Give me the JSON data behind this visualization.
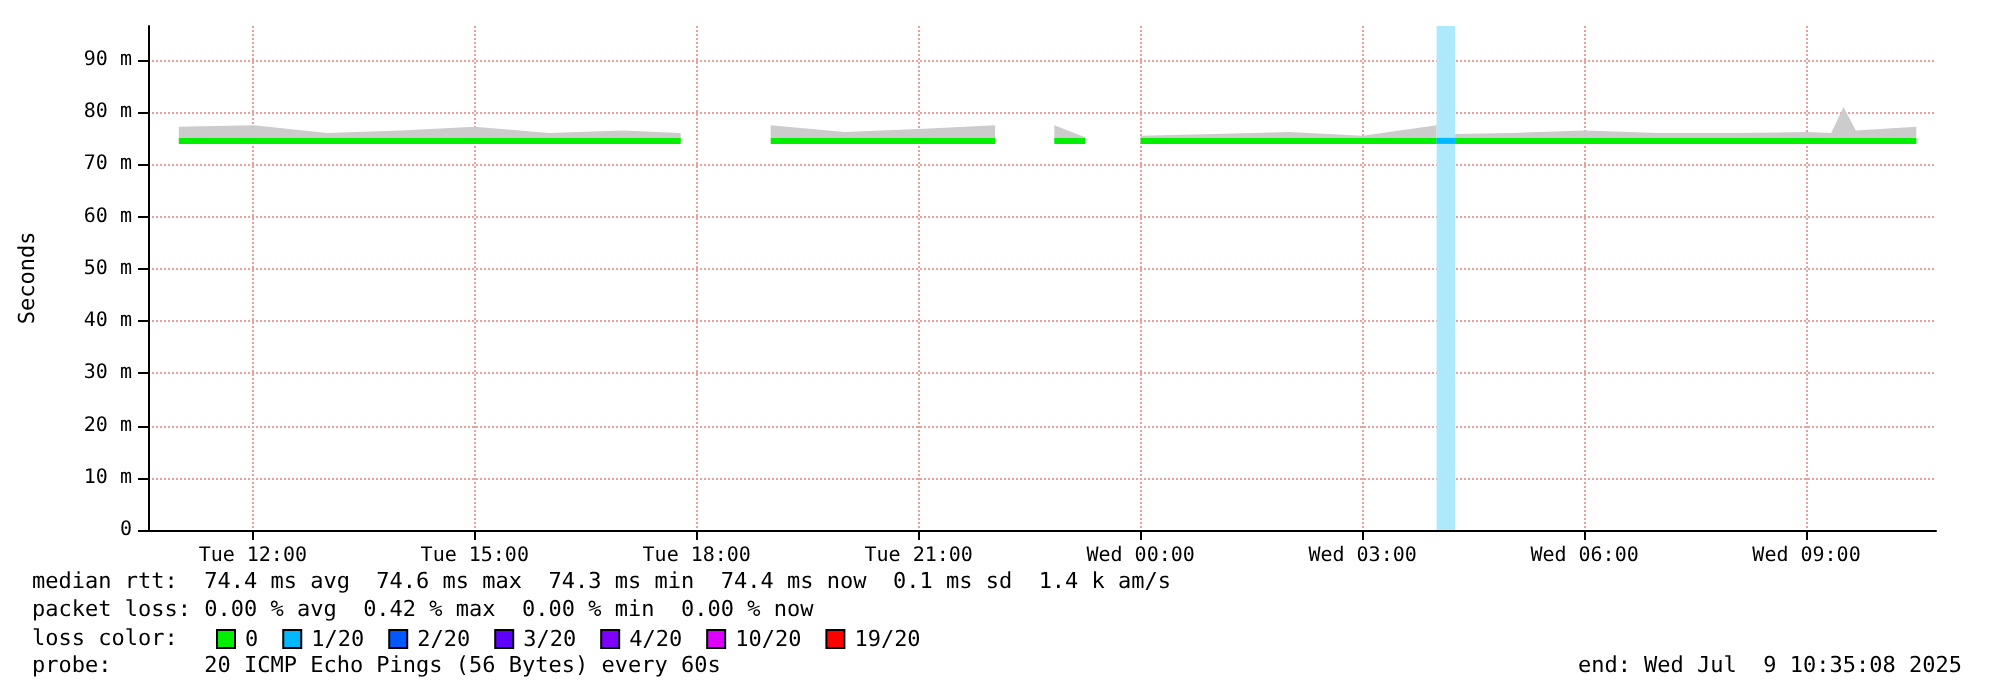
{
  "chart_data": {
    "type": "line",
    "ylabel": "Seconds",
    "legend_title": "loss color:",
    "legend": "bottom left",
    "grid": true,
    "marker": "none",
    "line_style": "solid",
    "xlim": [
      "2025-07-08T10:35",
      "2025-07-09T10:45"
    ],
    "xticks": [
      {
        "value": "2025-07-08T12:00",
        "label": "Tue 12:00"
      },
      {
        "value": "2025-07-08T15:00",
        "label": "Tue 15:00"
      },
      {
        "value": "2025-07-08T18:00",
        "label": "Tue 18:00"
      },
      {
        "value": "2025-07-08T21:00",
        "label": "Tue 21:00"
      },
      {
        "value": "2025-07-09T00:00",
        "label": "Wed 00:00"
      },
      {
        "value": "2025-07-09T03:00",
        "label": "Wed 03:00"
      },
      {
        "value": "2025-07-09T06:00",
        "label": "Wed 06:00"
      },
      {
        "value": "2025-07-09T09:00",
        "label": "Wed 09:00"
      }
    ],
    "ylim": [
      0,
      96.5
    ],
    "yticks": [
      0,
      {
        "value": 10,
        "label": "10 m"
      },
      {
        "value": 20,
        "label": "20 m"
      },
      {
        "value": 30,
        "label": "30 m"
      },
      {
        "value": 40,
        "label": "40 m"
      },
      {
        "value": 50,
        "label": "50 m"
      },
      {
        "value": 60,
        "label": "60 m"
      },
      {
        "value": 70,
        "label": "70 m"
      },
      {
        "value": 80,
        "label": "80 m"
      },
      {
        "value": 90,
        "label": "90 m"
      }
    ],
    "series": [
      {
        "name": "0",
        "color": "#00ee00",
        "x": [
          "2025-07-08T11:00",
          "2025-07-08T12:00",
          "2025-07-08T13:00",
          "2025-07-08T14:00",
          "2025-07-08T15:00",
          "2025-07-08T16:00",
          "2025-07-08T17:00",
          "2025-07-08T17:47",
          "2025-07-08T18:30",
          "2025-07-08T19:00",
          "2025-07-08T20:00",
          "2025-07-08T21:00",
          "2025-07-08T22:02",
          "2025-07-08T22:25",
          "2025-07-08T22:50",
          "2025-07-08T23:15",
          "2025-07-08T23:35",
          "2025-07-09T00:00",
          "2025-07-09T01:00",
          "2025-07-09T02:00",
          "2025-07-09T03:00",
          "2025-07-09T04:00",
          "2025-07-09T04:07",
          "2025-07-09T04:15",
          "2025-07-09T05:00",
          "2025-07-09T06:00",
          "2025-07-09T07:00",
          "2025-07-09T08:00",
          "2025-07-09T09:00",
          "2025-07-09T09:20",
          "2025-07-09T09:30",
          "2025-07-09T09:40",
          "2025-07-09T10:29"
        ],
        "values": [
          74.5,
          74.5,
          74.5,
          74.5,
          74.5,
          74.5,
          74.5,
          74.5,
          null,
          74.5,
          74.5,
          74.5,
          74.5,
          null,
          74.5,
          74.5,
          null,
          74.5,
          74.5,
          74.5,
          74.5,
          74.5,
          null,
          74.5,
          74.5,
          74.5,
          74.5,
          74.5,
          74.5,
          74.5,
          74.5,
          74.5,
          74.5
        ],
        "lower": [
          74.3,
          74.3,
          74.3,
          74.3,
          74.3,
          74.3,
          74.3,
          74.3,
          null,
          74.3,
          74.3,
          74.3,
          74.3,
          null,
          74.3,
          74.3,
          null,
          74.3,
          74.3,
          74.3,
          74.3,
          74.3,
          null,
          74.3,
          74.3,
          74.3,
          74.3,
          74.3,
          74.3,
          74.3,
          74.3,
          74.3,
          74.3
        ],
        "upper": [
          77.2,
          77.5,
          76,
          76.5,
          77.2,
          76,
          76.5,
          76,
          null,
          77.5,
          76.2,
          76.8,
          77.5,
          null,
          77.5,
          75.2,
          null,
          75.5,
          75.8,
          76.2,
          75.5,
          77.5,
          null,
          75.8,
          76,
          76.5,
          76,
          76,
          76.2,
          76,
          81,
          76.5,
          77.2
        ]
      },
      {
        "name": "1/20",
        "color": "#00b8ff",
        "x": [
          "2025-07-09T04:00",
          "2025-07-09T04:15"
        ],
        "values": [
          74.5,
          74.5
        ]
      },
      {
        "name": "2/20",
        "color": "#0059ff"
      },
      {
        "name": "3/20",
        "color": "#5e00ff"
      },
      {
        "name": "4/20",
        "color": "#7e00ff"
      },
      {
        "name": "10/20",
        "color": "#dd00ff"
      },
      {
        "name": "19/20",
        "color": "#ff0000"
      }
    ],
    "bands": [
      {
        "axis": "x",
        "from": "2025-07-09T04:00",
        "to": "2025-07-09T04:15",
        "color": "#aee8fb"
      }
    ],
    "annotations": [
      "median rtt:  74.4 ms avg  74.6 ms max  74.3 ms min  74.4 ms now  0.1 ms sd  1.4 k am/s",
      "packet loss: 0.00 % avg  0.42 % max  0.00 % min  0.00 % now",
      "probe:       20 ICMP Echo Pings (56 Bytes) every 60s",
      "end: Wed Jul  9 10:35:08 2025"
    ]
  }
}
